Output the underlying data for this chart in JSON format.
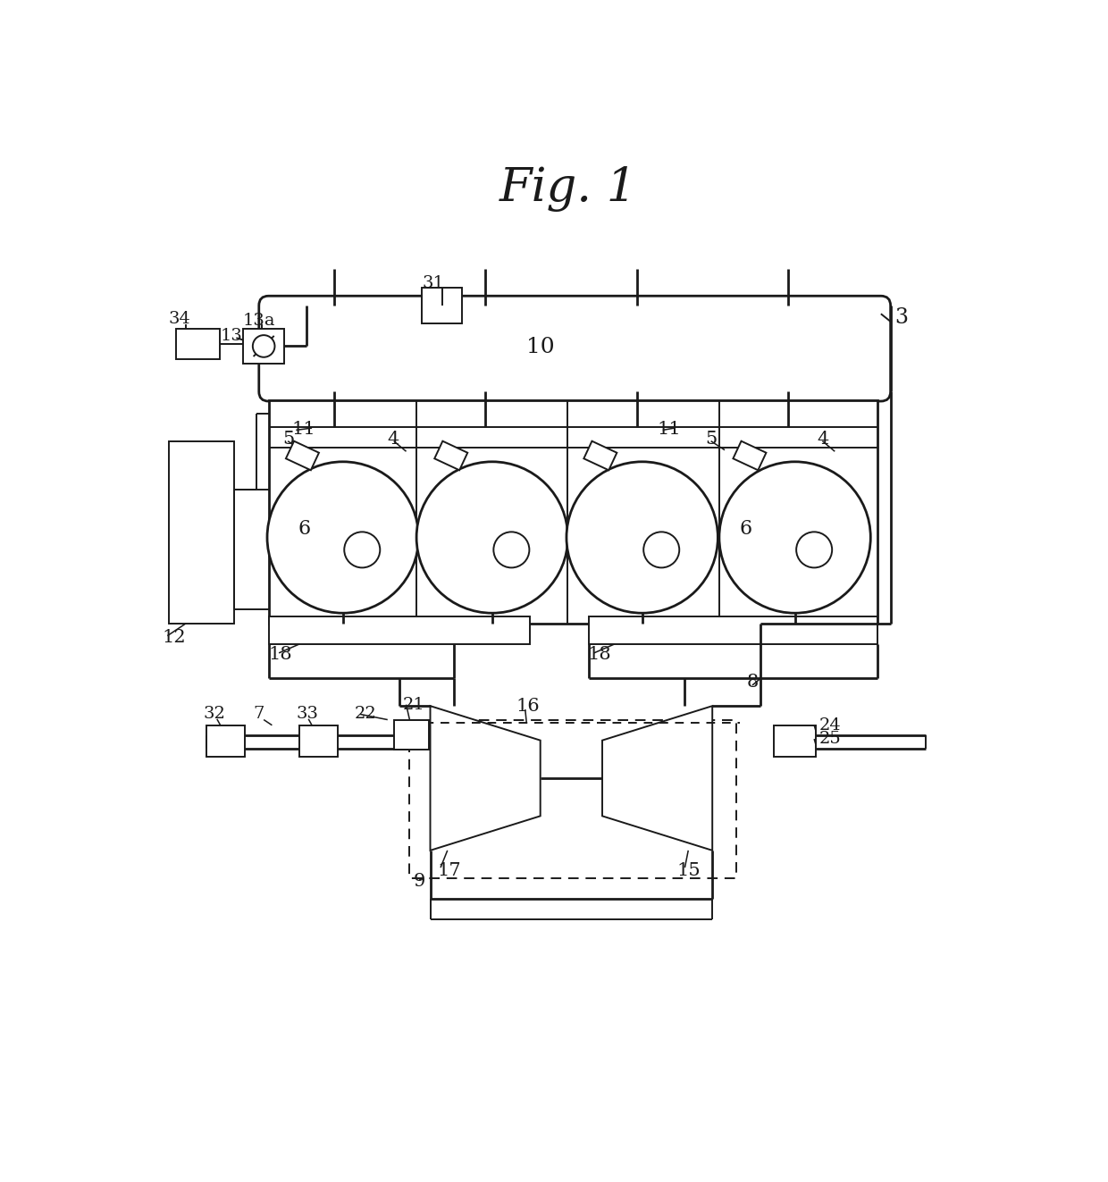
{
  "title": "Fig. 1",
  "bg_color": "#ffffff",
  "lc": "#1a1a1a",
  "lw": 1.4,
  "lw2": 2.0,
  "fig_width": 12.4,
  "fig_height": 13.23
}
